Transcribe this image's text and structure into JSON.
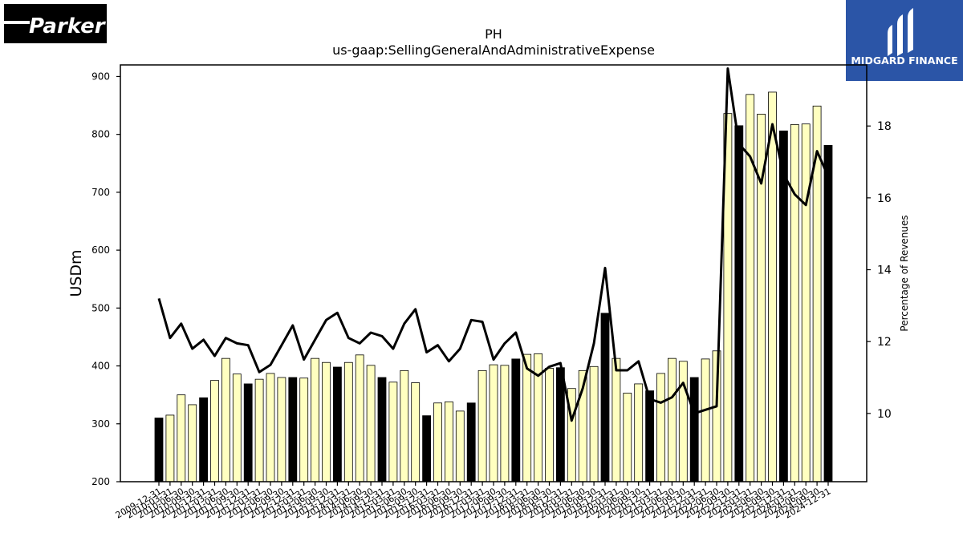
{
  "logos": {
    "left_text": "Parker",
    "right_text": "MIDGARD FINANCE"
  },
  "colors": {
    "annual_bar": "#000000",
    "quarter_bar": "#ffffc0",
    "line": "#000000",
    "logo_right_bg": "#2b55a7"
  },
  "chart_data": {
    "type": "bar",
    "title": "PH",
    "subtitle": "us-gaap:SellingGeneralAndAdministrativeExpense",
    "ylabel": "USDm",
    "y2label": "Percentage of Revenues",
    "ylim": [
      200,
      920
    ],
    "y2lim": [
      8.1,
      19.7
    ],
    "yticks": [
      200,
      300,
      400,
      500,
      600,
      700,
      800,
      900
    ],
    "y2ticks": [
      10,
      12,
      14,
      16,
      18
    ],
    "grid": false,
    "categories": [
      "2009-12-31",
      "2010-03-31",
      "2010-06-30",
      "2010-09-30",
      "2010-12-31",
      "2011-03-31",
      "2011-06-30",
      "2011-09-30",
      "2011-12-31",
      "2012-03-31",
      "2012-06-30",
      "2012-09-30",
      "2012-12-31",
      "2013-03-31",
      "2013-06-30",
      "2013-09-30",
      "2013-12-31",
      "2014-03-31",
      "2014-06-30",
      "2014-09-30",
      "2014-12-31",
      "2015-03-31",
      "2015-06-30",
      "2015-09-30",
      "2015-12-31",
      "2016-03-31",
      "2016-06-30",
      "2016-09-30",
      "2016-12-31",
      "2017-03-31",
      "2017-06-30",
      "2017-09-30",
      "2017-12-31",
      "2018-03-31",
      "2018-06-30",
      "2018-09-30",
      "2018-12-31",
      "2019-03-31",
      "2019-06-30",
      "2019-09-30",
      "2019-12-31",
      "2020-03-31",
      "2020-06-30",
      "2020-09-30",
      "2020-12-31",
      "2021-03-31",
      "2021-06-30",
      "2021-09-30",
      "2021-12-31",
      "2022-03-31",
      "2022-06-30",
      "2022-09-30",
      "2022-12-31",
      "2023-03-31",
      "2023-06-30",
      "2023-09-30",
      "2023-12-31",
      "2024-03-31",
      "2024-06-30",
      "2024-09-30",
      "2024-12-31"
    ],
    "series": [
      {
        "kind": "bar",
        "values": [
          310,
          315,
          350,
          333,
          345,
          375,
          413,
          386,
          369,
          377,
          387,
          380,
          380,
          379,
          413,
          406,
          398,
          406,
          419,
          401,
          380,
          372,
          392,
          371,
          314,
          336,
          338,
          322,
          336,
          392,
          402,
          401,
          412,
          420,
          421,
          396,
          397,
          361,
          392,
          399,
          491,
          413,
          353,
          369,
          357,
          387,
          413,
          408,
          380,
          412,
          426,
          836,
          815,
          869,
          835,
          873,
          806,
          817,
          818,
          849,
          781
        ],
        "annual": [
          true,
          false,
          false,
          false,
          true,
          false,
          false,
          false,
          true,
          false,
          false,
          false,
          true,
          false,
          false,
          false,
          true,
          false,
          false,
          false,
          true,
          false,
          false,
          false,
          true,
          false,
          false,
          false,
          true,
          false,
          false,
          false,
          true,
          false,
          false,
          false,
          true,
          false,
          false,
          false,
          true,
          false,
          false,
          false,
          true,
          false,
          false,
          false,
          true,
          false,
          false,
          false,
          true,
          false,
          false,
          false,
          true,
          false,
          false,
          false,
          true
        ]
      },
      {
        "kind": "line",
        "axis": "right",
        "values": [
          13.2,
          12.1,
          12.5,
          11.8,
          12.05,
          11.6,
          12.1,
          11.95,
          11.9,
          11.15,
          11.35,
          11.9,
          12.45,
          11.5,
          12.05,
          12.6,
          12.8,
          12.1,
          11.95,
          12.25,
          12.15,
          11.8,
          12.5,
          12.9,
          11.7,
          11.9,
          11.45,
          11.8,
          12.6,
          12.55,
          11.5,
          11.95,
          12.25,
          11.25,
          11.05,
          11.3,
          11.4,
          9.8,
          10.7,
          11.95,
          14.05,
          11.2,
          11.2,
          11.45,
          10.4,
          10.3,
          10.45,
          10.85,
          10.0,
          10.1,
          10.2,
          19.6,
          17.5,
          17.15,
          16.4,
          18.05,
          16.65,
          16.1,
          15.8,
          17.3,
          16.6
        ]
      }
    ]
  }
}
